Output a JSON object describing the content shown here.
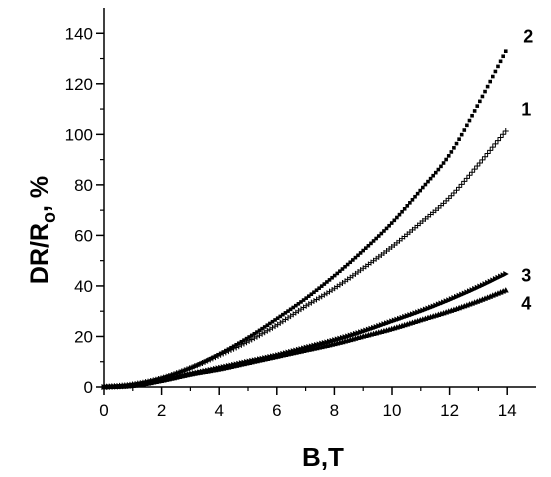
{
  "chart_data": {
    "type": "scatter",
    "xlabel": "B,T",
    "ylabel": {
      "main": "DR/R",
      "subscript": "o",
      "suffix": ", %"
    },
    "xlim": [
      0,
      15
    ],
    "ylim": [
      0,
      150
    ],
    "x_ticks": [
      0,
      2,
      4,
      6,
      8,
      10,
      12,
      14
    ],
    "y_ticks": [
      0,
      20,
      40,
      60,
      80,
      100,
      120,
      140
    ],
    "grid": false,
    "series": [
      {
        "name": "1",
        "marker": "plus",
        "x": [
          0,
          1,
          2,
          3,
          4,
          5,
          6,
          7,
          8,
          9,
          10,
          11,
          12,
          13,
          14
        ],
        "values": [
          0,
          1,
          3.5,
          7.5,
          12.5,
          18,
          24.5,
          32,
          39,
          47,
          55.5,
          65,
          75,
          88,
          102
        ]
      },
      {
        "name": "2",
        "marker": "square",
        "x": [
          0,
          1,
          2,
          3,
          4,
          5,
          6,
          7,
          8,
          9,
          10,
          11,
          12,
          13,
          14
        ],
        "values": [
          0,
          1,
          3.5,
          7.5,
          13,
          19.5,
          27,
          35,
          44,
          54,
          65,
          78,
          92,
          112,
          134
        ]
      },
      {
        "name": "3",
        "marker": "triangle-right",
        "x": [
          0,
          1,
          2,
          3,
          4,
          5,
          6,
          7,
          8,
          9,
          10,
          11,
          12,
          13,
          14
        ],
        "values": [
          0,
          0.5,
          2.5,
          5,
          7.5,
          10,
          12.5,
          15.5,
          18.5,
          22,
          26,
          30,
          34.5,
          39.5,
          45
        ]
      },
      {
        "name": "4",
        "marker": "triangle-up",
        "x": [
          0,
          1,
          2,
          3,
          4,
          5,
          6,
          7,
          8,
          9,
          10,
          11,
          12,
          13,
          14
        ],
        "values": [
          0,
          0.5,
          2.5,
          5,
          7,
          9.5,
          12,
          14.5,
          17,
          20,
          23,
          26.5,
          30,
          34,
          38.5
        ]
      }
    ]
  }
}
